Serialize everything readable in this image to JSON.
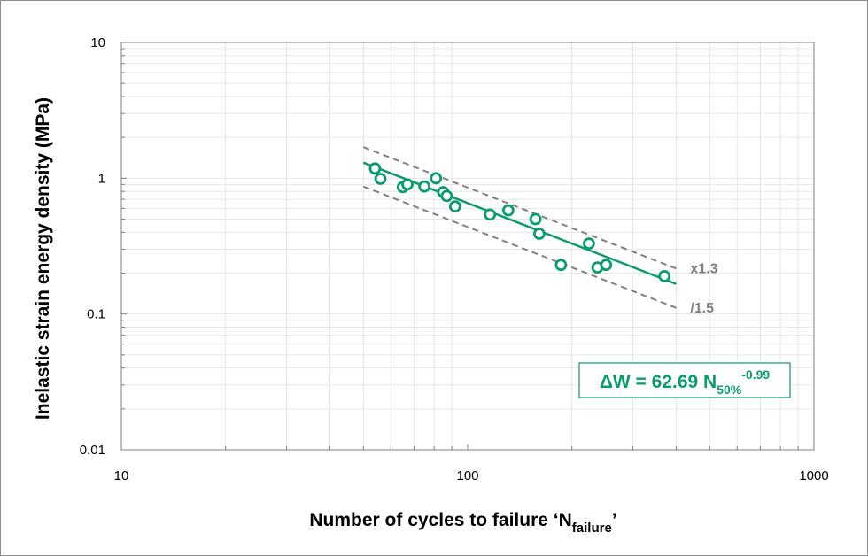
{
  "chart_data": {
    "type": "scatter",
    "title": "",
    "xlabel": "Number of cycles to failure ‘N",
    "xlabel_sub": "failure",
    "xlabel_end": "’",
    "ylabel": "Inelastic strain energy density (MPa)",
    "xscale": "log",
    "yscale": "log",
    "xlim": [
      10,
      1000
    ],
    "ylim": [
      0.01,
      10
    ],
    "x_ticks": [
      10,
      100,
      1000
    ],
    "x_tick_labels": [
      "10",
      "100",
      "1000"
    ],
    "y_ticks": [
      0.01,
      0.1,
      1,
      10
    ],
    "y_tick_labels": [
      "0.01",
      "0.1",
      "1",
      "10"
    ],
    "grid": true,
    "points": [
      {
        "x": 54,
        "y": 1.18
      },
      {
        "x": 56,
        "y": 0.99
      },
      {
        "x": 65,
        "y": 0.86
      },
      {
        "x": 67,
        "y": 0.9
      },
      {
        "x": 75,
        "y": 0.87
      },
      {
        "x": 81,
        "y": 1.0
      },
      {
        "x": 85,
        "y": 0.79
      },
      {
        "x": 87,
        "y": 0.74
      },
      {
        "x": 92,
        "y": 0.62
      },
      {
        "x": 116,
        "y": 0.54
      },
      {
        "x": 131,
        "y": 0.58
      },
      {
        "x": 157,
        "y": 0.5
      },
      {
        "x": 161,
        "y": 0.39
      },
      {
        "x": 186,
        "y": 0.23
      },
      {
        "x": 224,
        "y": 0.33
      },
      {
        "x": 237,
        "y": 0.22
      },
      {
        "x": 251,
        "y": 0.23
      },
      {
        "x": 370,
        "y": 0.19
      }
    ],
    "fit": {
      "coefficient": 62.69,
      "exponent": -0.99,
      "x_range": [
        50,
        400
      ]
    },
    "bands": [
      {
        "label": "x1.3",
        "factor": 1.3
      },
      {
        "label": "/1.5",
        "factor": 0.6667
      }
    ],
    "equation": {
      "lhs": "ΔW = 62.69 N",
      "sub": "50%",
      "sup": "-0.99"
    },
    "colors": {
      "series": "#0a9b6f",
      "bands": "#808080",
      "grid": "#e6e6e6",
      "axes": "#7f7f7f"
    }
  }
}
